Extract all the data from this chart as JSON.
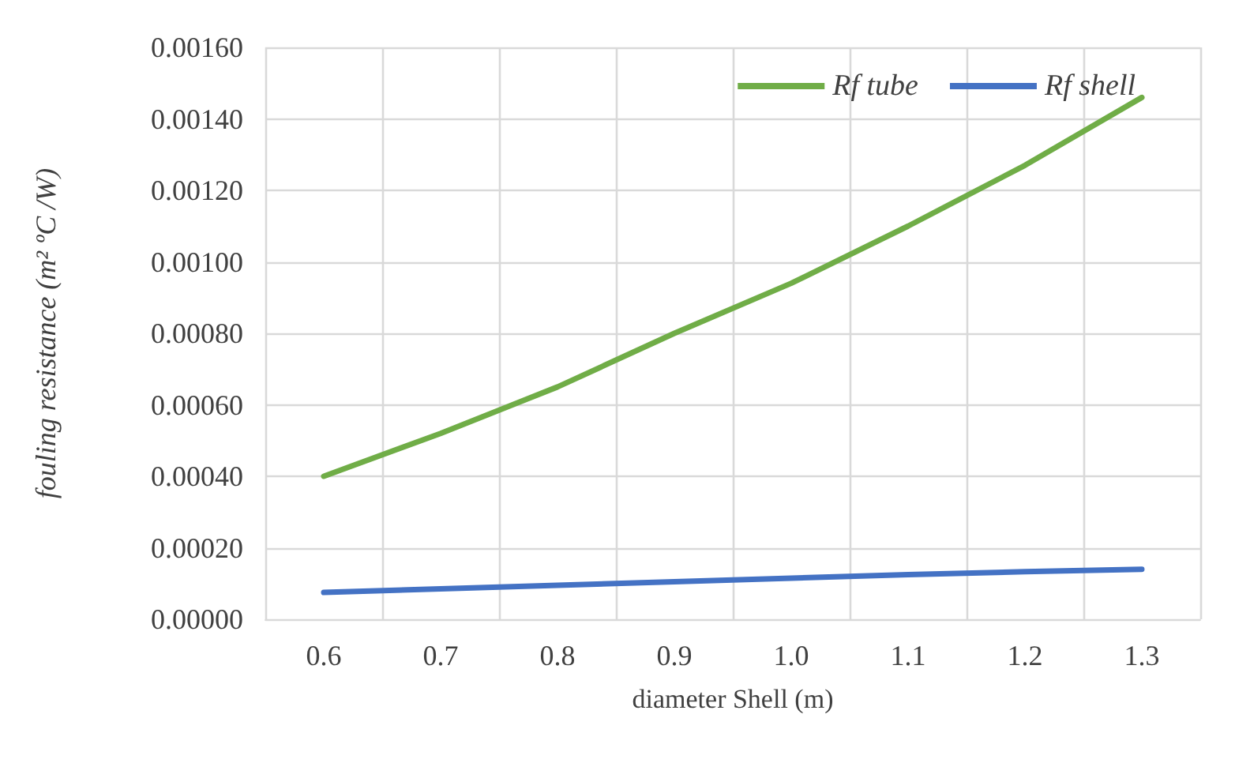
{
  "chart_data": {
    "type": "line",
    "xlabel": "diameter Shell (m)",
    "ylabel": "fouling resistance (m² ºC /W)",
    "categories": [
      "0.6",
      "0.7",
      "0.8",
      "0.9",
      "1.0",
      "1.1",
      "1.2",
      "1.3"
    ],
    "series": [
      {
        "name": "Rf tube",
        "color": "#70ad47",
        "values": [
          0.0004,
          0.00052,
          0.00065,
          0.0008,
          0.00094,
          0.0011,
          0.00127,
          0.00146
        ]
      },
      {
        "name": "Rf shell",
        "color": "#4472c4",
        "values": [
          7.5e-05,
          8.5e-05,
          9.5e-05,
          0.000105,
          0.000115,
          0.000125,
          0.000133,
          0.00014
        ]
      }
    ],
    "ylim": [
      0,
      0.0016
    ],
    "yticks": [
      {
        "value": 0,
        "label": "0.00000"
      },
      {
        "value": 0.0002,
        "label": "0.00020"
      },
      {
        "value": 0.0004,
        "label": "0.00040"
      },
      {
        "value": 0.0006,
        "label": "0.00060"
      },
      {
        "value": 0.0008,
        "label": "0.00080"
      },
      {
        "value": 0.001,
        "label": "0.00100"
      },
      {
        "value": 0.0012,
        "label": "0.00120"
      },
      {
        "value": 0.0014,
        "label": "0.00140"
      },
      {
        "value": 0.0016,
        "label": "0.00160"
      }
    ],
    "grid": true,
    "legend": "top right",
    "marker": "none",
    "line_style": "solid"
  }
}
